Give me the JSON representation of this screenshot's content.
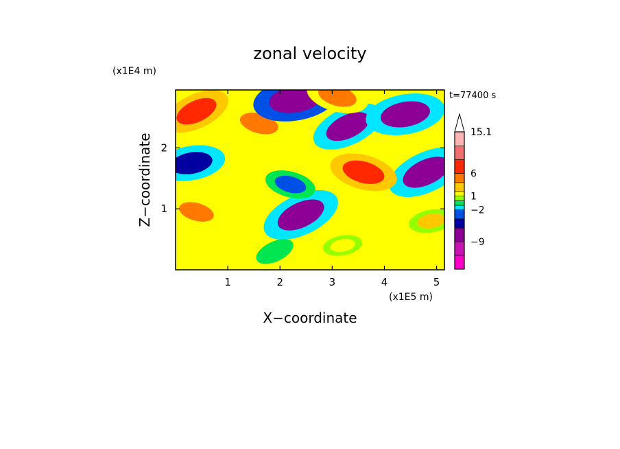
{
  "chart_data": {
    "type": "heatmap",
    "title": "zonal velocity",
    "xlabel": "X−coordinate",
    "ylabel": "Z−coordinate",
    "x_unit": "(x1E5 m)",
    "y_unit": "(x1E4 m)",
    "time_label": "t=77400 s",
    "xlim": [
      0,
      5.15
    ],
    "ylim": [
      0,
      2.95
    ],
    "x_ticks": [
      "1",
      "2",
      "3",
      "4",
      "5"
    ],
    "x_tick_values": [
      1,
      2,
      3,
      4,
      5
    ],
    "y_ticks": [
      "1",
      "2"
    ],
    "y_tick_values": [
      1,
      2
    ],
    "colorbar": {
      "labels": [
        "15.1",
        "6",
        "1",
        "−2",
        "−9"
      ],
      "label_values": [
        15.1,
        6,
        1,
        -2,
        -9
      ],
      "levels": [
        -15,
        -12,
        -9,
        -6,
        -4,
        -2,
        -1,
        0,
        1,
        2,
        4,
        6,
        9,
        12,
        15.1
      ],
      "colors": [
        "#ff00c8",
        "#c814b4",
        "#8c0096",
        "#0000a0",
        "#0050e6",
        "#00e6ff",
        "#00e650",
        "#96ff00",
        "#ffff00",
        "#ffc800",
        "#ff7800",
        "#ff2800",
        "#f06e6e",
        "#ffb4b4"
      ],
      "extend": "max"
    },
    "features": [
      {
        "x": 0.4,
        "z": 2.6,
        "value": 6
      },
      {
        "x": 1.6,
        "z": 2.4,
        "value": 5
      },
      {
        "x": 2.3,
        "z": 2.8,
        "value": -9
      },
      {
        "x": 3.3,
        "z": 2.35,
        "value": -7
      },
      {
        "x": 3.1,
        "z": 2.85,
        "value": 5
      },
      {
        "x": 4.4,
        "z": 2.55,
        "value": -8
      },
      {
        "x": 4.8,
        "z": 1.6,
        "value": -8
      },
      {
        "x": 3.6,
        "z": 1.6,
        "value": 6
      },
      {
        "x": 0.3,
        "z": 1.75,
        "value": -6
      },
      {
        "x": 2.4,
        "z": 0.9,
        "value": -8
      },
      {
        "x": 0.4,
        "z": 0.95,
        "value": 4
      },
      {
        "x": 3.2,
        "z": 0.4,
        "value": 1
      },
      {
        "x": 1.9,
        "z": 0.3,
        "value": -1
      },
      {
        "x": 2.2,
        "z": 1.4,
        "value": -3
      },
      {
        "x": 4.9,
        "z": 0.8,
        "value": 2
      }
    ]
  }
}
